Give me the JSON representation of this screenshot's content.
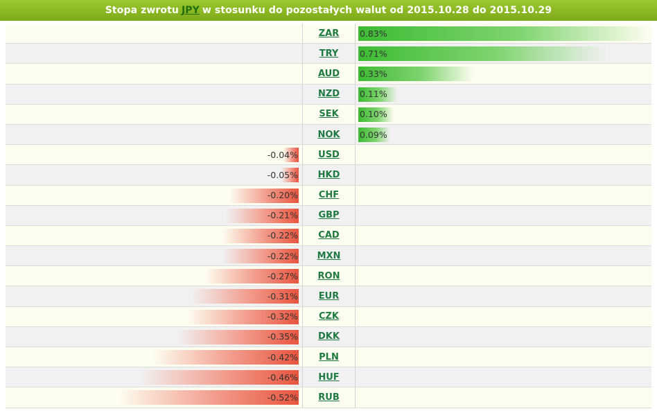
{
  "header": {
    "title_prefix": "Stopa zwrotu",
    "base_currency": "JPY",
    "title_suffix": "w stosunku do pozostałych walut od 2015.10.28 do 2015.10.29"
  },
  "colors": {
    "positive": "#3dbb33",
    "negative": "#e8553f",
    "header": "#8fbc25",
    "link": "#1f7a42"
  },
  "chart_data": {
    "type": "bar",
    "categories": [
      "ZAR",
      "TRY",
      "AUD",
      "NZD",
      "SEK",
      "NOK",
      "USD",
      "HKD",
      "CHF",
      "GBP",
      "CAD",
      "MXN",
      "RON",
      "EUR",
      "CZK",
      "DKK",
      "PLN",
      "HUF",
      "RUB"
    ],
    "values": [
      0.83,
      0.71,
      0.33,
      0.11,
      0.1,
      0.09,
      -0.04,
      -0.05,
      -0.2,
      -0.21,
      -0.22,
      -0.22,
      -0.27,
      -0.31,
      -0.32,
      -0.35,
      -0.42,
      -0.46,
      -0.52
    ],
    "labels": [
      "0.83%",
      "0.71%",
      "0.33%",
      "0.11%",
      "0.10%",
      "0.09%",
      "-0.04%",
      "-0.05%",
      "-0.20%",
      "-0.21%",
      "-0.22%",
      "-0.22%",
      "-0.27%",
      "-0.31%",
      "-0.32%",
      "-0.35%",
      "-0.42%",
      "-0.46%",
      "-0.52%"
    ],
    "title": "Stopa zwrotu JPY w stosunku do pozostałych walut od 2015.10.28 do 2015.10.29",
    "unit": "%"
  }
}
